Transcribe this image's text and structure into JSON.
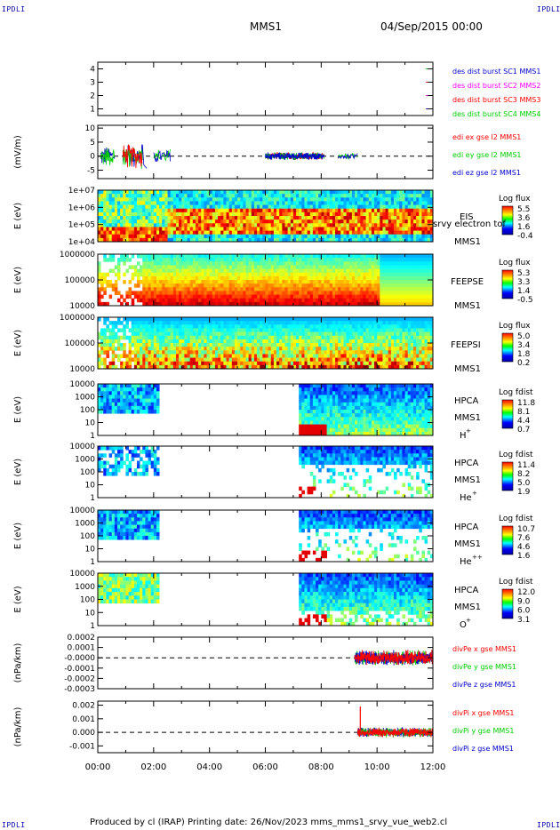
{
  "corner_label": "IPDLI",
  "header": {
    "spacecraft": "MMS1",
    "datetime": "04/Sep/2015 00:00"
  },
  "footer": {
    "text": "Produced by cl (IRAP)   Printing date: 26/Nov/2023   mms_mms1_srvy_vue_web2.cl"
  },
  "colors": {
    "red": "#ff0000",
    "green": "#00cc00",
    "blue": "#0000cc",
    "magenta": "#ff00ff"
  },
  "time_axis": {
    "ticks": [
      "00:00",
      "02:00",
      "04:00",
      "06:00",
      "08:00",
      "10:00",
      "12:00"
    ]
  },
  "chart_data": [
    {
      "type": "line",
      "ylabel": "",
      "yticks": [
        "4",
        "3",
        "2",
        "1"
      ],
      "ylim": [
        0.5,
        4.5
      ],
      "legend": [
        {
          "label": "des dist burst SC1 MMS1",
          "color": "#0000cc"
        },
        {
          "label": "des dist burst SC2 MMS2",
          "color": "#ff00ff"
        },
        {
          "label": "des dist burst SC3 MMS3",
          "color": "#ff0000"
        },
        {
          "label": "des dist burst SC4 MMS4",
          "color": "#00cc00"
        }
      ]
    },
    {
      "type": "line",
      "ylabel": "(mV/m)",
      "yticks": [
        "10",
        "5",
        "0",
        "-5"
      ],
      "ylim": [
        -8,
        11
      ],
      "legend": [
        {
          "label": "edi ex gse l2 MMS1",
          "color": "#ff0000"
        },
        {
          "label": "edi ey gse l2 MMS1",
          "color": "#00cc00"
        },
        {
          "label": "edi ez gse l2 MMS1",
          "color": "#0000cc"
        }
      ]
    },
    {
      "type": "heatmap",
      "ylabel": "E (eV)",
      "yticks": [
        "1e+07",
        "1e+06",
        "1e+05",
        "1e+04"
      ],
      "instrument": "EIS",
      "species": "srvy electron tof",
      "sc": "MMS1",
      "cbar_title": "Log flux",
      "cbar_ticks": [
        "5.5",
        "3.6",
        "1.6",
        "-0.4"
      ]
    },
    {
      "type": "heatmap",
      "ylabel": "E (eV)",
      "yticks": [
        "1000000",
        "100000",
        "10000"
      ],
      "instrument": "FEEPSE",
      "sc": "MMS1",
      "cbar_title": "Log flux",
      "cbar_ticks": [
        "5.3",
        "3.3",
        "1.4",
        "-0.5"
      ]
    },
    {
      "type": "heatmap",
      "ylabel": "E (eV)",
      "yticks": [
        "1000000",
        "100000",
        "10000"
      ],
      "instrument": "FEEPSI",
      "sc": "MMS1",
      "cbar_title": "Log flux",
      "cbar_ticks": [
        "5.0",
        "3.4",
        "1.8",
        "0.2"
      ]
    },
    {
      "type": "heatmap",
      "ylabel": "E (eV)",
      "yticks": [
        "10000",
        "1000",
        "100",
        "10",
        "1"
      ],
      "instrument": "HPCA",
      "sc": "MMS1",
      "species": "H",
      "charge": "+",
      "cbar_title": "Log fdist",
      "cbar_ticks": [
        "11.8",
        "8.1",
        "4.4",
        "0.7"
      ]
    },
    {
      "type": "heatmap",
      "ylabel": "E (eV)",
      "yticks": [
        "10000",
        "1000",
        "100",
        "10",
        "1"
      ],
      "instrument": "HPCA",
      "sc": "MMS1",
      "species": "He",
      "charge": "+",
      "cbar_title": "Log fdist",
      "cbar_ticks": [
        "11.4",
        "8.2",
        "5.0",
        "1.9"
      ]
    },
    {
      "type": "heatmap",
      "ylabel": "E (eV)",
      "yticks": [
        "10000",
        "1000",
        "100",
        "10",
        "1"
      ],
      "instrument": "HPCA",
      "sc": "MMS1",
      "species": "He",
      "charge": "++",
      "cbar_title": "Log fdist",
      "cbar_ticks": [
        "10.7",
        "7.6",
        "4.6",
        "1.6"
      ]
    },
    {
      "type": "heatmap",
      "ylabel": "E (eV)",
      "yticks": [
        "10000",
        "1000",
        "100",
        "10",
        "1"
      ],
      "instrument": "HPCA",
      "sc": "MMS1",
      "species": "O",
      "charge": "+",
      "cbar_title": "Log fdist",
      "cbar_ticks": [
        "12.0",
        "9.0",
        "6.0",
        "3.1"
      ]
    },
    {
      "type": "line",
      "ylabel": "(nPa/km)",
      "yticks": [
        "0.0002",
        "0.0001",
        "-0.0000",
        "-0.0001",
        "-0.0002",
        "-0.0003"
      ],
      "ylim": [
        -0.0003,
        0.0002
      ],
      "legend": [
        {
          "label": "divPe x gse MMS1",
          "color": "#ff0000"
        },
        {
          "label": "divPe y gse MMS1",
          "color": "#00cc00"
        },
        {
          "label": "divPe z gse MMS1",
          "color": "#0000cc"
        }
      ]
    },
    {
      "type": "line",
      "ylabel": "(nPa/km)",
      "yticks": [
        "0.002",
        "0.001",
        "0.000",
        "-0.001"
      ],
      "ylim": [
        -0.0015,
        0.0023
      ],
      "legend": [
        {
          "label": "divPi x gse MMS1",
          "color": "#ff0000"
        },
        {
          "label": "divPi y gse MMS1",
          "color": "#00cc00"
        },
        {
          "label": "divPi z gse MMS1",
          "color": "#0000cc"
        }
      ]
    }
  ]
}
